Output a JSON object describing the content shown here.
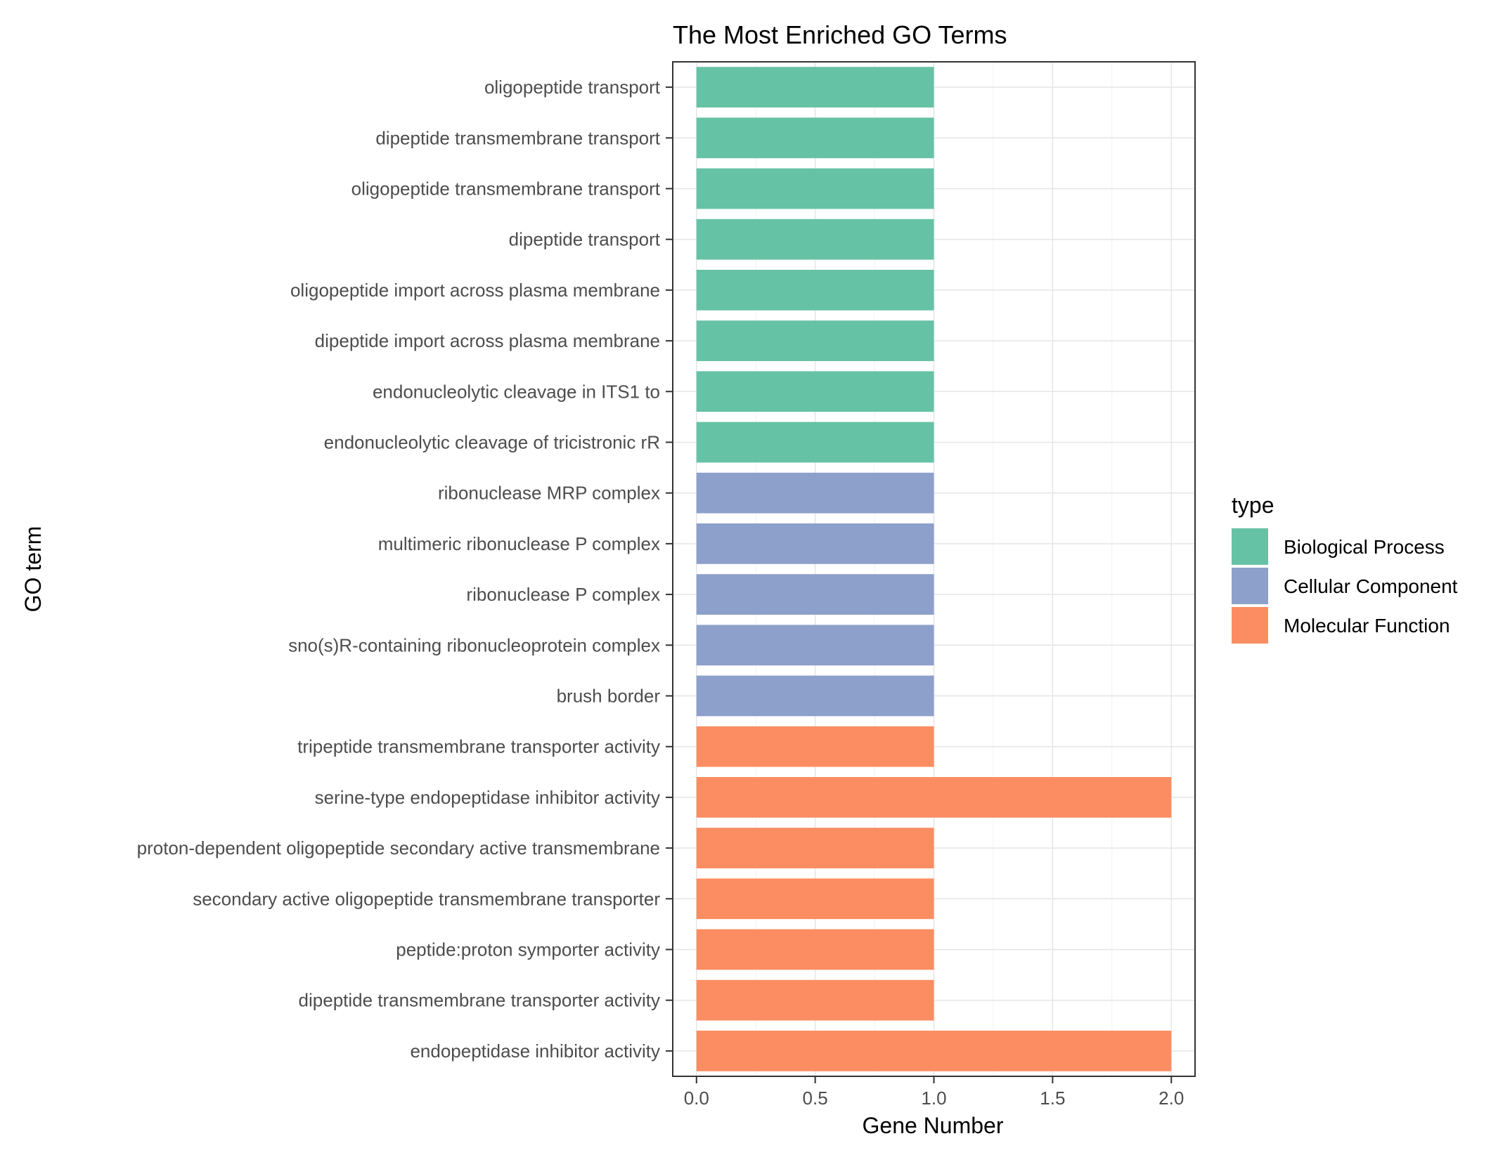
{
  "chart_data": {
    "type": "bar",
    "orientation": "horizontal",
    "title": "The Most Enriched GO Terms",
    "xlabel": "Gene Number",
    "ylabel": "GO term",
    "xlim": [
      -0.1,
      2.1
    ],
    "xticks": [
      0.0,
      0.5,
      1.0,
      1.5,
      2.0
    ],
    "xtick_labels": [
      "0.0",
      "0.5",
      "1.0",
      "1.5",
      "2.0"
    ],
    "grid": true,
    "legend": {
      "title": "type",
      "placement": "right",
      "entries": [
        {
          "label": "Biological Process",
          "color": "#66c2a5"
        },
        {
          "label": "Cellular Component",
          "color": "#8da0cb"
        },
        {
          "label": "Molecular Function",
          "color": "#fc8d62"
        }
      ]
    },
    "bars": [
      {
        "term": "oligopeptide transport",
        "value": 1,
        "type": "Biological Process"
      },
      {
        "term": "dipeptide transmembrane transport",
        "value": 1,
        "type": "Biological Process"
      },
      {
        "term": "oligopeptide transmembrane transport",
        "value": 1,
        "type": "Biological Process"
      },
      {
        "term": "dipeptide transport",
        "value": 1,
        "type": "Biological Process"
      },
      {
        "term": "oligopeptide import across plasma membrane",
        "value": 1,
        "type": "Biological Process"
      },
      {
        "term": "dipeptide import across plasma membrane",
        "value": 1,
        "type": "Biological Process"
      },
      {
        "term": "endonucleolytic cleavage in ITS1 to",
        "value": 1,
        "type": "Biological Process"
      },
      {
        "term": "endonucleolytic cleavage of tricistronic rR",
        "value": 1,
        "type": "Biological Process"
      },
      {
        "term": "ribonuclease MRP complex",
        "value": 1,
        "type": "Cellular Component"
      },
      {
        "term": "multimeric ribonuclease P complex",
        "value": 1,
        "type": "Cellular Component"
      },
      {
        "term": "ribonuclease P complex",
        "value": 1,
        "type": "Cellular Component"
      },
      {
        "term": "sno(s)R-containing ribonucleoprotein complex",
        "value": 1,
        "type": "Cellular Component"
      },
      {
        "term": "brush border",
        "value": 1,
        "type": "Cellular Component"
      },
      {
        "term": "tripeptide transmembrane transporter activity",
        "value": 1,
        "type": "Molecular Function"
      },
      {
        "term": "serine-type endopeptidase inhibitor activity",
        "value": 2,
        "type": "Molecular Function"
      },
      {
        "term": "proton-dependent oligopeptide secondary active transmembrane",
        "value": 1,
        "type": "Molecular Function"
      },
      {
        "term": "secondary active oligopeptide transmembrane transporter",
        "value": 1,
        "type": "Molecular Function"
      },
      {
        "term": "peptide:proton symporter activity",
        "value": 1,
        "type": "Molecular Function"
      },
      {
        "term": "dipeptide transmembrane transporter activity",
        "value": 1,
        "type": "Molecular Function"
      },
      {
        "term": "endopeptidase inhibitor activity",
        "value": 2,
        "type": "Molecular Function"
      }
    ]
  }
}
